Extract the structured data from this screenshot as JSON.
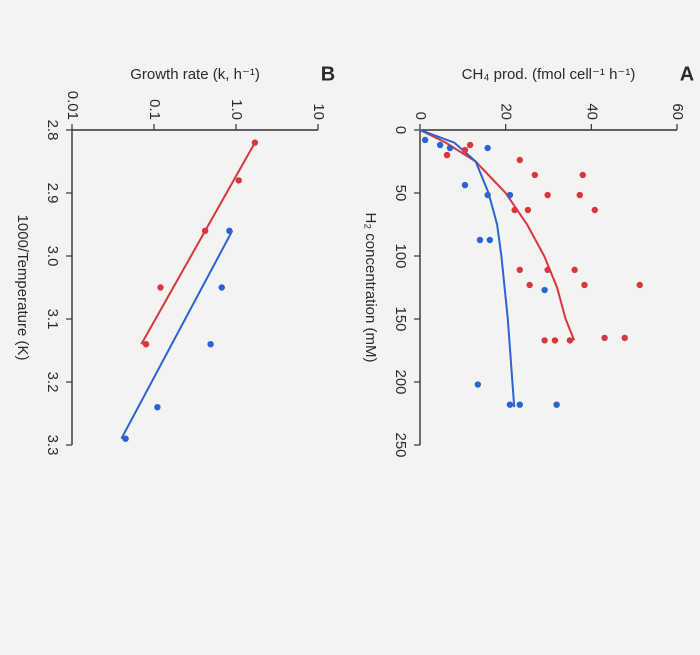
{
  "chart_data": [
    {
      "type": "scatter",
      "panel": "A",
      "xlabel": "H₂ concentration (mM)",
      "ylabel": "CH₄ prod. (fmol cell⁻¹ h⁻¹)",
      "xlim": [
        0,
        250
      ],
      "ylim": [
        0,
        60
      ],
      "xticks": [
        0,
        50,
        100,
        150,
        200,
        250
      ],
      "yticks": [
        0,
        20,
        40,
        60
      ],
      "series": [
        {
          "color": "#d9363e",
          "x": [
            19.9,
            15.9,
            11.9,
            23.8,
            35.7,
            51.6,
            51.6,
            35.7,
            63.5,
            63.5,
            63.5,
            111,
            123,
            111,
            111,
            123,
            123,
            167,
            167,
            167,
            165,
            165
          ],
          "values": [
            6.3,
            10.5,
            11.7,
            23.3,
            26.8,
            29.8,
            37.3,
            38.0,
            40.8,
            25.2,
            22.1,
            23.3,
            25.6,
            29.8,
            36.1,
            38.4,
            51.3,
            31.5,
            29.1,
            35.0,
            43.1,
            47.8
          ]
        },
        {
          "color": "#2a62d8",
          "x": [
            7.9,
            11.9,
            14.3,
            14.3,
            43.7,
            51.6,
            51.6,
            87.3,
            87.3,
            127,
            202,
            218,
            218,
            218
          ],
          "values": [
            1.2,
            4.7,
            7.0,
            15.8,
            10.5,
            15.8,
            21.0,
            14.0,
            16.3,
            29.1,
            13.5,
            21.0,
            23.3,
            31.9
          ]
        }
      ],
      "fit_lines": [
        {
          "color": "#d9363e",
          "x": [
            0,
            10,
            25,
            50,
            75,
            100,
            125,
            150,
            167
          ],
          "values": [
            0,
            6,
            13,
            20,
            25,
            29,
            32,
            34,
            36
          ]
        },
        {
          "color": "#2a62d8",
          "x": [
            0,
            10,
            25,
            50,
            75,
            100,
            150,
            220
          ],
          "values": [
            0,
            8,
            13,
            16,
            18,
            19,
            20.5,
            22
          ]
        }
      ]
    },
    {
      "type": "scatter",
      "panel": "B",
      "xlabel": "1000/Temperature (K)",
      "ylabel": "Growth rate (k, h⁻¹)",
      "xlim": [
        2.8,
        3.3
      ],
      "ylim": [
        0.01,
        10
      ],
      "ylog": true,
      "xticks": [
        2.8,
        2.9,
        {
          "value": 3,
          "label": "3.0"
        },
        3.1,
        3.2,
        3.3
      ],
      "yticks": [
        0.01,
        0.1,
        {
          "value": 1,
          "label": "1.0"
        },
        10
      ],
      "series": [
        {
          "color": "#d9363e",
          "x": [
            2.82,
            2.88,
            2.96,
            3.05,
            3.14
          ],
          "values": [
            1.7,
            1.08,
            0.42,
            0.12,
            0.08
          ]
        },
        {
          "color": "#2a62d8",
          "x": [
            2.96,
            3.05,
            3.14,
            3.24,
            3.29
          ],
          "values": [
            0.83,
            0.67,
            0.49,
            0.11,
            0.045
          ]
        }
      ],
      "fit_lines": [
        {
          "color": "#d9363e",
          "x": [
            2.82,
            3.14
          ],
          "values": [
            1.7,
            0.07
          ]
        },
        {
          "color": "#2a62d8",
          "x": [
            2.96,
            3.29
          ],
          "values": [
            0.9,
            0.04
          ]
        }
      ]
    }
  ]
}
